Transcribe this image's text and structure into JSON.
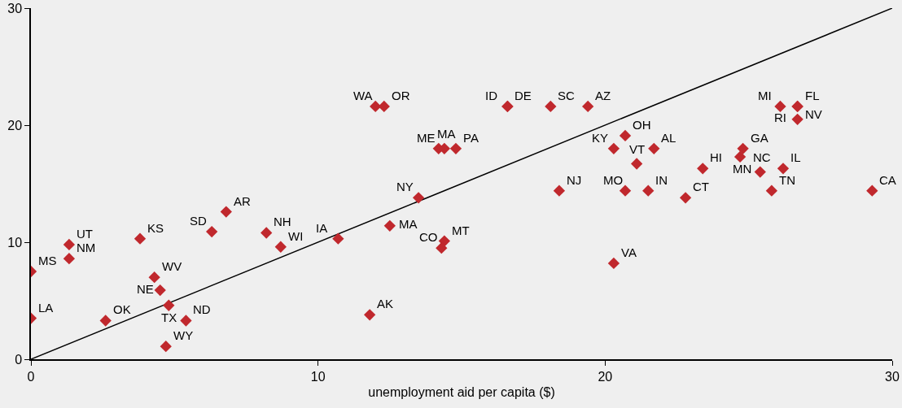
{
  "chart_data": {
    "type": "scatter",
    "xlabel": "unemployment aid per capita ($)",
    "x": [
      0,
      0,
      1.33,
      1.33,
      3.8,
      2.6,
      4.3,
      4.5,
      4.8,
      4.7,
      5.4,
      6.8,
      6.3,
      8.2,
      8.7,
      10.7,
      11.8,
      12.0,
      12.3,
      14.2,
      14.4,
      14.8,
      13.5,
      12.5,
      14.4,
      14.3,
      16.6,
      16.6,
      18.1,
      19.4,
      18.4,
      20.3,
      20.3,
      20.7,
      21.1,
      21.7,
      20.7,
      21.5,
      22.8,
      23.4,
      24.8,
      24.7,
      25.4,
      26.2,
      25.8,
      26.1,
      26.7,
      26.7,
      26.7,
      29.3
    ],
    "series": [
      {
        "color": "#c0282d",
        "values": [
          7.5,
          3.5,
          9.8,
          8.6,
          10.3,
          3.3,
          7.0,
          5.9,
          4.6,
          1.1,
          3.3,
          12.6,
          10.9,
          10.8,
          9.6,
          10.3,
          3.8,
          21.6,
          21.6,
          18.0,
          18.0,
          18.0,
          13.8,
          11.4,
          10.1,
          9.5,
          21.6,
          21.6,
          21.6,
          21.6,
          14.4,
          8.2,
          18.0,
          19.1,
          16.7,
          18.0,
          14.4,
          14.4,
          13.8,
          16.3,
          18.0,
          17.3,
          16.0,
          16.3,
          14.4,
          21.6,
          21.6,
          21.6,
          20.5,
          14.4
        ]
      },
      {
        "type": "line",
        "color": "#000000",
        "x": [
          0,
          30
        ],
        "values": [
          0,
          30
        ],
        "marker": "none"
      }
    ],
    "annotations": [
      {
        "text": "MS",
        "x": 0,
        "y": 7.5
      },
      {
        "text": "LA",
        "x": 0,
        "y": 3.5
      },
      {
        "text": "UT",
        "x": 1.33,
        "y": 9.8
      },
      {
        "text": "NM",
        "x": 1.33,
        "y": 8.6
      },
      {
        "text": "KS",
        "x": 3.8,
        "y": 10.3
      },
      {
        "text": "OK",
        "x": 2.6,
        "y": 3.3
      },
      {
        "text": "WV",
        "x": 4.3,
        "y": 7.0
      },
      {
        "text": "NE",
        "x": 4.5,
        "y": 5.9
      },
      {
        "text": "TX",
        "x": 4.8,
        "y": 4.6
      },
      {
        "text": "WY",
        "x": 4.7,
        "y": 1.1
      },
      {
        "text": "ND",
        "x": 5.4,
        "y": 3.3
      },
      {
        "text": "AR",
        "x": 6.8,
        "y": 12.6
      },
      {
        "text": "SD",
        "x": 6.3,
        "y": 10.9
      },
      {
        "text": "NH",
        "x": 8.2,
        "y": 10.8
      },
      {
        "text": "WI",
        "x": 8.7,
        "y": 9.6
      },
      {
        "text": "IA",
        "x": 10.7,
        "y": 10.3
      },
      {
        "text": "AK",
        "x": 11.8,
        "y": 3.8
      },
      {
        "text": "WA",
        "x": 12.0,
        "y": 21.6
      },
      {
        "text": "OR",
        "x": 12.3,
        "y": 21.6
      },
      {
        "text": "ME",
        "x": 14.2,
        "y": 18.0
      },
      {
        "text": "MA",
        "x": 14.4,
        "y": 18.0
      },
      {
        "text": "PA",
        "x": 14.8,
        "y": 18.0
      },
      {
        "text": "NY",
        "x": 13.5,
        "y": 13.8
      },
      {
        "text": "MA",
        "x": 12.5,
        "y": 11.4
      },
      {
        "text": "MT",
        "x": 14.4,
        "y": 10.1
      },
      {
        "text": "CO",
        "x": 14.3,
        "y": 9.5
      },
      {
        "text": "DE",
        "x": 16.6,
        "y": 21.6
      },
      {
        "text": "ID",
        "x": 16.6,
        "y": 21.6
      },
      {
        "text": "SC",
        "x": 18.1,
        "y": 21.6
      },
      {
        "text": "AZ",
        "x": 19.4,
        "y": 21.6
      },
      {
        "text": "NJ",
        "x": 18.4,
        "y": 14.4
      },
      {
        "text": "VA",
        "x": 20.3,
        "y": 8.2
      },
      {
        "text": "KY",
        "x": 20.3,
        "y": 18.0
      },
      {
        "text": "OH",
        "x": 20.7,
        "y": 19.1
      },
      {
        "text": "VT",
        "x": 21.1,
        "y": 16.7
      },
      {
        "text": "AL",
        "x": 21.7,
        "y": 18.0
      },
      {
        "text": "MO",
        "x": 20.7,
        "y": 14.4
      },
      {
        "text": "IN",
        "x": 21.5,
        "y": 14.4
      },
      {
        "text": "CT",
        "x": 22.8,
        "y": 13.8
      },
      {
        "text": "HI",
        "x": 23.4,
        "y": 16.3
      },
      {
        "text": "GA",
        "x": 24.8,
        "y": 18.0
      },
      {
        "text": "MN",
        "x": 24.7,
        "y": 17.3
      },
      {
        "text": "NC",
        "x": 25.4,
        "y": 16.0
      },
      {
        "text": "IL",
        "x": 26.2,
        "y": 16.3
      },
      {
        "text": "TN",
        "x": 25.8,
        "y": 14.4
      },
      {
        "text": "MI",
        "x": 26.1,
        "y": 21.6
      },
      {
        "text": "FL",
        "x": 26.7,
        "y": 21.6
      },
      {
        "text": "NV",
        "x": 26.7,
        "y": 21.6
      },
      {
        "text": "RI",
        "x": 26.7,
        "y": 20.5
      },
      {
        "text": "CA",
        "x": 29.3,
        "y": 14.4
      }
    ],
    "xlim": [
      0,
      30
    ],
    "xticks": [
      0,
      10,
      20,
      30
    ],
    "ylim": [
      0,
      30
    ],
    "yticks": [
      0,
      10,
      20,
      30
    ],
    "marker": "diamond"
  }
}
